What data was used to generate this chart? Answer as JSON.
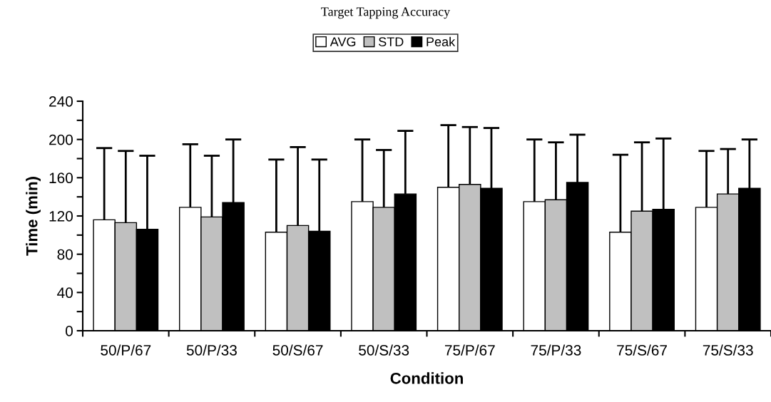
{
  "chart_data": {
    "type": "bar",
    "title": "Target Tapping Accuracy",
    "xlabel": "Condition",
    "ylabel": "Time (min)",
    "categories": [
      "50/P/67",
      "50/P/33",
      "50/S/67",
      "50/S/33",
      "75/P/67",
      "75/P/33",
      "75/S/67",
      "75/S/33"
    ],
    "series": [
      {
        "name": "AVG",
        "color": "#ffffff",
        "values": [
          116,
          129,
          103,
          135,
          150,
          135,
          103,
          129
        ],
        "errors": [
          [
            116,
            191
          ],
          [
            129,
            195
          ],
          [
            103,
            179
          ],
          [
            135,
            200
          ],
          [
            150,
            215
          ],
          [
            135,
            200
          ],
          [
            103,
            184
          ],
          [
            129,
            188
          ]
        ]
      },
      {
        "name": "STD",
        "color": "#c0c0c0",
        "values": [
          113,
          119,
          110,
          129,
          153,
          137,
          125,
          143
        ],
        "errors": [
          [
            113,
            188
          ],
          [
            119,
            183
          ],
          [
            110,
            192
          ],
          [
            129,
            189
          ],
          [
            153,
            213
          ],
          [
            137,
            197
          ],
          [
            125,
            197
          ],
          [
            143,
            190
          ]
        ]
      },
      {
        "name": "Peak",
        "color": "#000000",
        "values": [
          106,
          134,
          104,
          143,
          149,
          155,
          127,
          149
        ],
        "errors": [
          [
            106,
            183
          ],
          [
            134,
            200
          ],
          [
            104,
            179
          ],
          [
            143,
            209
          ],
          [
            149,
            212
          ],
          [
            155,
            205
          ],
          [
            127,
            201
          ],
          [
            149,
            200
          ]
        ]
      }
    ],
    "ylim": [
      0,
      240
    ],
    "yticks": [
      0,
      {
        "value": 20,
        "label": null
      },
      40,
      {
        "value": 60,
        "label": null
      },
      80,
      {
        "value": 100,
        "label": null
      },
      120,
      {
        "value": 140,
        "label": null
      },
      160,
      {
        "value": 180,
        "label": null
      },
      200,
      {
        "value": 220,
        "label": null
      },
      240
    ],
    "legend": "top",
    "grid": false
  }
}
